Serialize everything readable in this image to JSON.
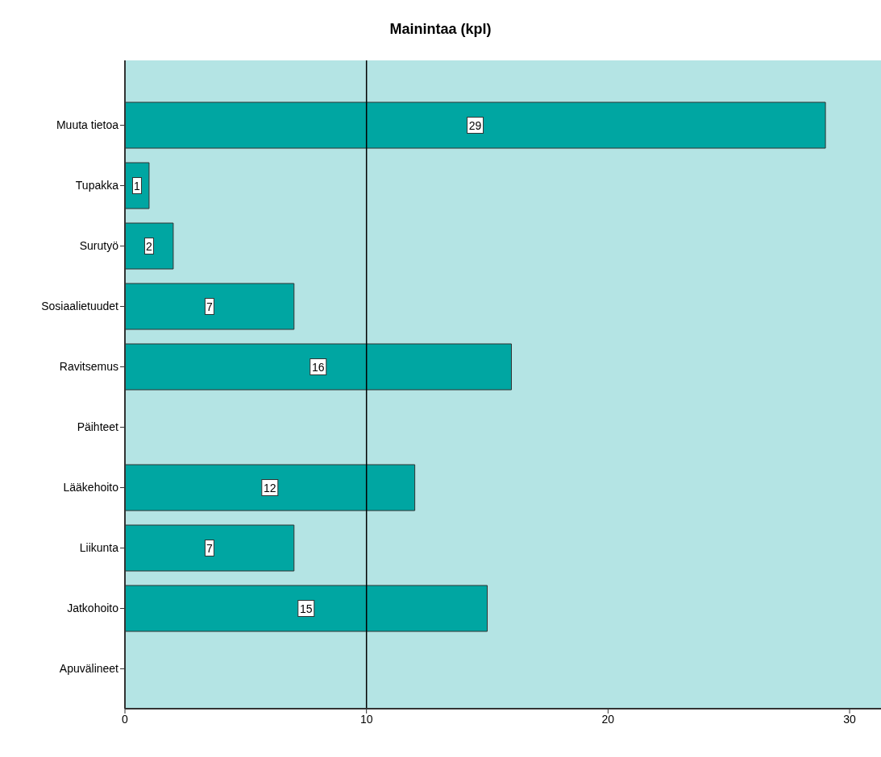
{
  "chart_data": {
    "type": "bar",
    "orientation": "horizontal",
    "title": "Mainintaa (kpl)",
    "categories": [
      "Muuta tietoa",
      "Tupakka",
      "Surutyö",
      "Sosiaalietuudet",
      "Ravitsemus",
      "Päihteet",
      "Lääkehoito",
      "Liikunta",
      "Jatkohoito",
      "Apuvälineet"
    ],
    "values": [
      29,
      1,
      2,
      7,
      16,
      0,
      12,
      7,
      15,
      0
    ],
    "color": "#00a6a2",
    "xlim": [
      0,
      31.3
    ],
    "xticks": [
      0,
      10,
      20,
      30
    ],
    "ref_lines": [
      {
        "axis": "x",
        "value": 10,
        "color": "#000000"
      }
    ],
    "value_labels": [
      "29",
      "1",
      "2",
      "7",
      "16",
      null,
      "12",
      "7",
      "15",
      null
    ],
    "grid": false
  }
}
